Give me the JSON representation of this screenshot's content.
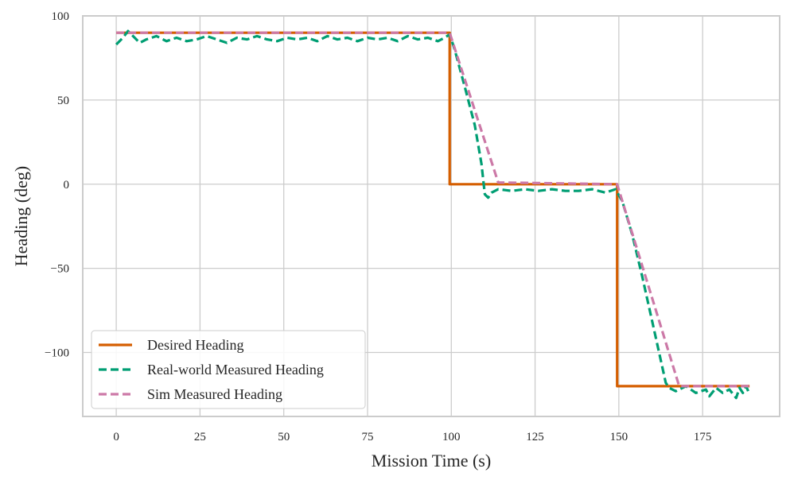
{
  "chart_data": {
    "type": "line",
    "xlabel": "Mission Time (s)",
    "ylabel": "Heading (deg)",
    "xlim": [
      -10,
      198
    ],
    "ylim": [
      -138,
      100
    ],
    "x_ticks": [
      0,
      25,
      50,
      75,
      100,
      125,
      150,
      175
    ],
    "y_ticks": [
      100,
      50,
      0,
      -50,
      -100
    ],
    "x_tick_labels": [
      "0",
      "25",
      "50",
      "75",
      "100",
      "125",
      "150",
      "175"
    ],
    "y_tick_labels": [
      "100",
      "50",
      "0",
      "−50",
      "−100"
    ],
    "grid": true,
    "legend_position": "lower-left",
    "series": [
      {
        "name": "Desired Heading",
        "color": "#d55e00",
        "style": "solid",
        "points": [
          [
            0,
            90
          ],
          [
            99.5,
            90
          ],
          [
            99.5,
            0
          ],
          [
            149.5,
            0
          ],
          [
            149.5,
            -120
          ],
          [
            189,
            -120
          ]
        ]
      },
      {
        "name": "Real-world Measured Heading",
        "color": "#009e73",
        "style": "dashed",
        "points": [
          [
            0,
            83
          ],
          [
            2,
            87
          ],
          [
            3.5,
            91
          ],
          [
            5,
            88
          ],
          [
            7,
            84
          ],
          [
            9,
            86
          ],
          [
            12,
            88
          ],
          [
            15,
            85
          ],
          [
            18,
            87
          ],
          [
            21,
            85
          ],
          [
            24,
            86
          ],
          [
            27,
            88
          ],
          [
            30,
            86
          ],
          [
            33,
            84
          ],
          [
            36,
            87
          ],
          [
            39,
            86
          ],
          [
            42,
            88
          ],
          [
            45,
            86
          ],
          [
            48,
            85
          ],
          [
            51,
            87
          ],
          [
            54,
            86
          ],
          [
            57,
            87
          ],
          [
            60,
            85
          ],
          [
            63,
            88
          ],
          [
            66,
            86
          ],
          [
            69,
            87
          ],
          [
            72,
            85
          ],
          [
            75,
            87
          ],
          [
            78,
            86
          ],
          [
            81,
            87
          ],
          [
            84,
            85
          ],
          [
            87,
            88
          ],
          [
            90,
            86
          ],
          [
            93,
            87
          ],
          [
            96,
            85
          ],
          [
            98,
            87
          ],
          [
            99.5,
            89
          ],
          [
            101,
            80
          ],
          [
            104,
            58
          ],
          [
            107,
            35
          ],
          [
            109,
            12
          ],
          [
            110,
            -6
          ],
          [
            111,
            -8
          ],
          [
            112,
            -5
          ],
          [
            114,
            -3
          ],
          [
            118,
            -4
          ],
          [
            122,
            -3
          ],
          [
            126,
            -4
          ],
          [
            130,
            -3
          ],
          [
            134,
            -4
          ],
          [
            138,
            -4
          ],
          [
            142,
            -3
          ],
          [
            146,
            -5
          ],
          [
            149,
            -3
          ],
          [
            151,
            -10
          ],
          [
            154,
            -30
          ],
          [
            157,
            -55
          ],
          [
            160,
            -82
          ],
          [
            162,
            -100
          ],
          [
            164,
            -118
          ],
          [
            165,
            -121
          ],
          [
            167,
            -123
          ],
          [
            170,
            -120
          ],
          [
            173,
            -124
          ],
          [
            176,
            -122
          ],
          [
            177,
            -126
          ],
          [
            179,
            -121
          ],
          [
            181,
            -124
          ],
          [
            183,
            -122
          ],
          [
            185,
            -127
          ],
          [
            186,
            -121
          ],
          [
            187,
            -124
          ],
          [
            188,
            -120
          ],
          [
            189,
            -125
          ]
        ]
      },
      {
        "name": "Sim Measured Heading",
        "color": "#cc79a7",
        "style": "dashed",
        "points": [
          [
            0,
            90
          ],
          [
            99.5,
            90
          ],
          [
            114,
            1
          ],
          [
            149.5,
            0
          ],
          [
            168,
            -120
          ],
          [
            189,
            -120
          ]
        ]
      }
    ]
  }
}
